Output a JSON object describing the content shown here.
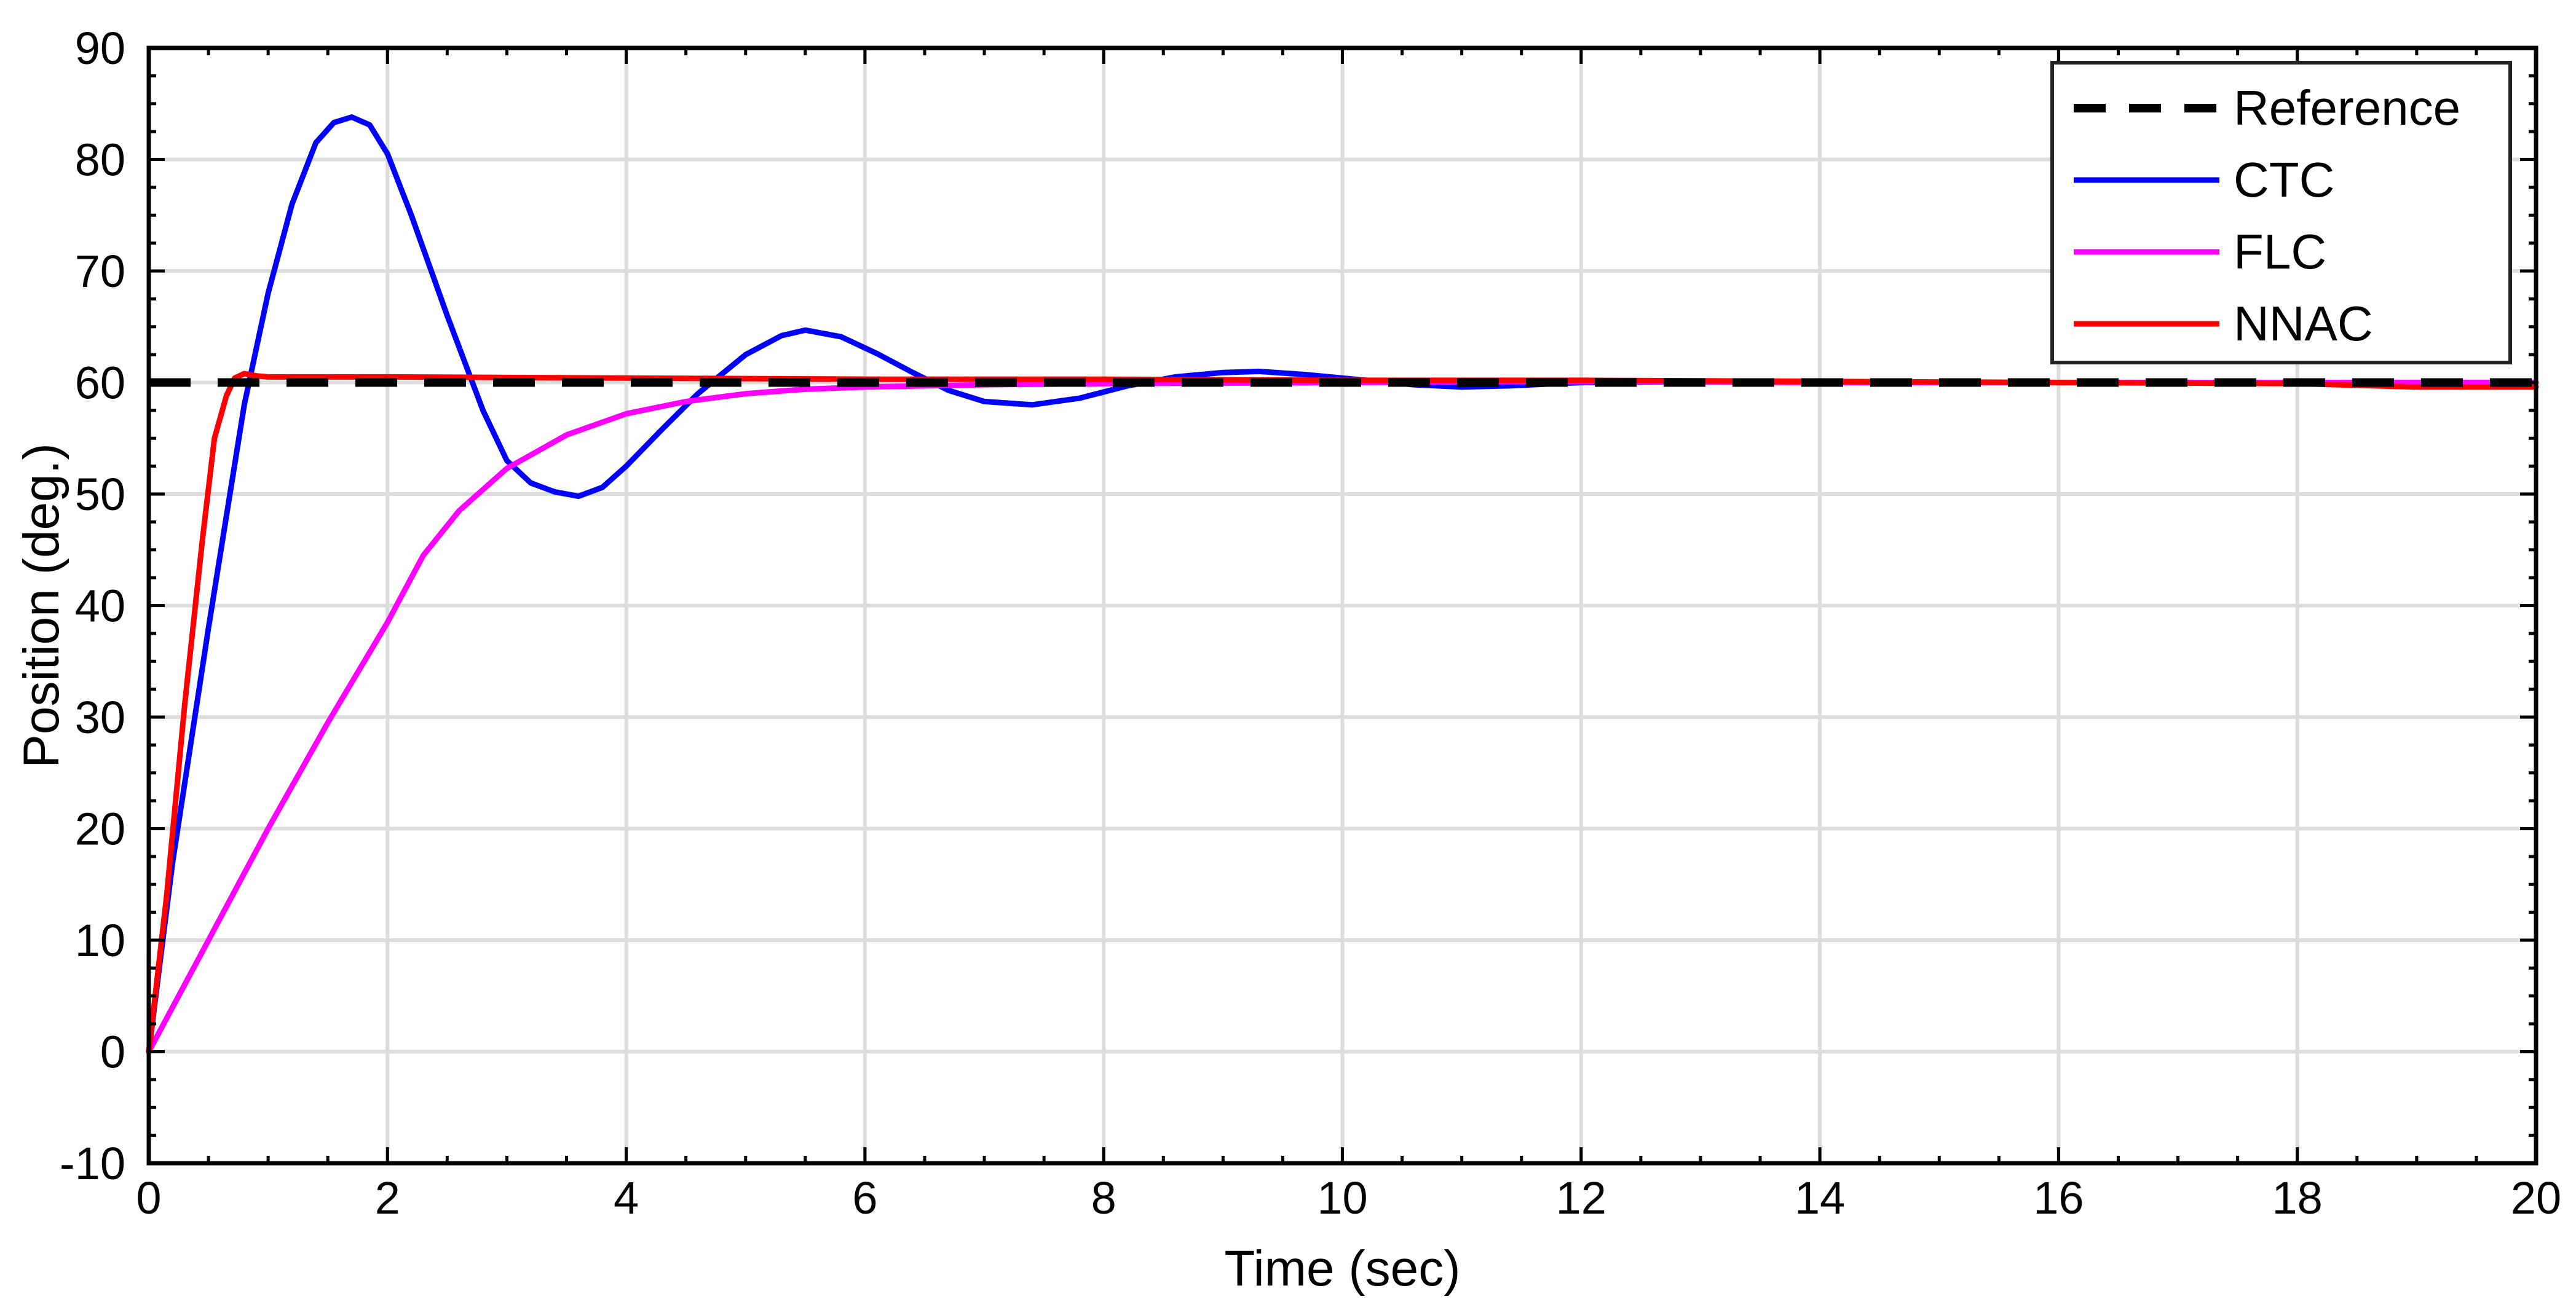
{
  "chart_data": {
    "type": "line",
    "title": "",
    "xlabel": "Time (sec)",
    "ylabel": "Position (deg.)",
    "xlim": [
      0,
      20
    ],
    "ylim": [
      -10,
      90
    ],
    "xticks": [
      0,
      2,
      4,
      6,
      8,
      10,
      12,
      14,
      16,
      18,
      20
    ],
    "yticks": [
      -10,
      0,
      10,
      20,
      30,
      40,
      50,
      60,
      70,
      80,
      90
    ],
    "grid": true,
    "legend_position": "top-right",
    "series": [
      {
        "name": "Reference",
        "color": "#000000",
        "dashed": true,
        "x": [
          0,
          20
        ],
        "y": [
          60,
          60
        ]
      },
      {
        "name": "CTC",
        "color": "#0000ff",
        "dashed": false,
        "x": [
          0,
          0.2,
          0.5,
          0.8,
          1.0,
          1.2,
          1.4,
          1.55,
          1.7,
          1.85,
          2.0,
          2.2,
          2.5,
          2.8,
          3.0,
          3.2,
          3.4,
          3.6,
          3.8,
          4.0,
          4.3,
          4.6,
          5.0,
          5.3,
          5.5,
          5.8,
          6.1,
          6.4,
          6.7,
          7.0,
          7.4,
          7.8,
          8.2,
          8.6,
          9.0,
          9.3,
          9.7,
          10.1,
          10.6,
          11.0,
          11.4,
          12.0,
          13.0,
          14.0,
          16.0,
          18.0,
          20.0
        ],
        "y": [
          0,
          17,
          38,
          58,
          68,
          76,
          81.5,
          83.3,
          83.8,
          83.1,
          80.5,
          75,
          66,
          57.5,
          53,
          51,
          50.2,
          49.8,
          50.6,
          52.5,
          55.8,
          59,
          62.5,
          64.2,
          64.7,
          64.1,
          62.6,
          60.9,
          59.3,
          58.3,
          58.0,
          58.6,
          59.7,
          60.5,
          60.9,
          61.0,
          60.7,
          60.3,
          59.8,
          59.6,
          59.7,
          60.0,
          60.1,
          60.0,
          60.0,
          60.0,
          60.0
        ]
      },
      {
        "name": "FLC",
        "color": "#ff00ff",
        "dashed": false,
        "x": [
          0,
          0.5,
          1.0,
          1.5,
          2.0,
          2.3,
          2.6,
          3.0,
          3.5,
          4.0,
          4.5,
          5.0,
          5.5,
          6.0,
          7.0,
          8.0,
          10.0,
          12.0,
          14.0,
          16.0,
          18.0,
          20.0
        ],
        "y": [
          0,
          10,
          20,
          29.5,
          38.5,
          44.5,
          48.5,
          52.3,
          55.3,
          57.2,
          58.3,
          59.0,
          59.4,
          59.6,
          59.8,
          59.9,
          60.0,
          60.1,
          60.0,
          60.0,
          60.0,
          60.0
        ]
      },
      {
        "name": "NNAC",
        "color": "#ff0000",
        "dashed": false,
        "x": [
          0,
          0.15,
          0.3,
          0.45,
          0.55,
          0.65,
          0.72,
          0.8,
          0.9,
          1.0,
          2.0,
          4.0,
          6.0,
          8.0,
          10.0,
          12.0,
          14.0,
          16.0,
          18.0,
          19.0,
          20.0
        ],
        "y": [
          0,
          14,
          31,
          46,
          55,
          58.8,
          60.4,
          60.8,
          60.6,
          60.5,
          60.5,
          60.4,
          60.3,
          60.3,
          60.2,
          60.2,
          60.1,
          60.0,
          59.9,
          59.6,
          59.6
        ]
      }
    ]
  }
}
